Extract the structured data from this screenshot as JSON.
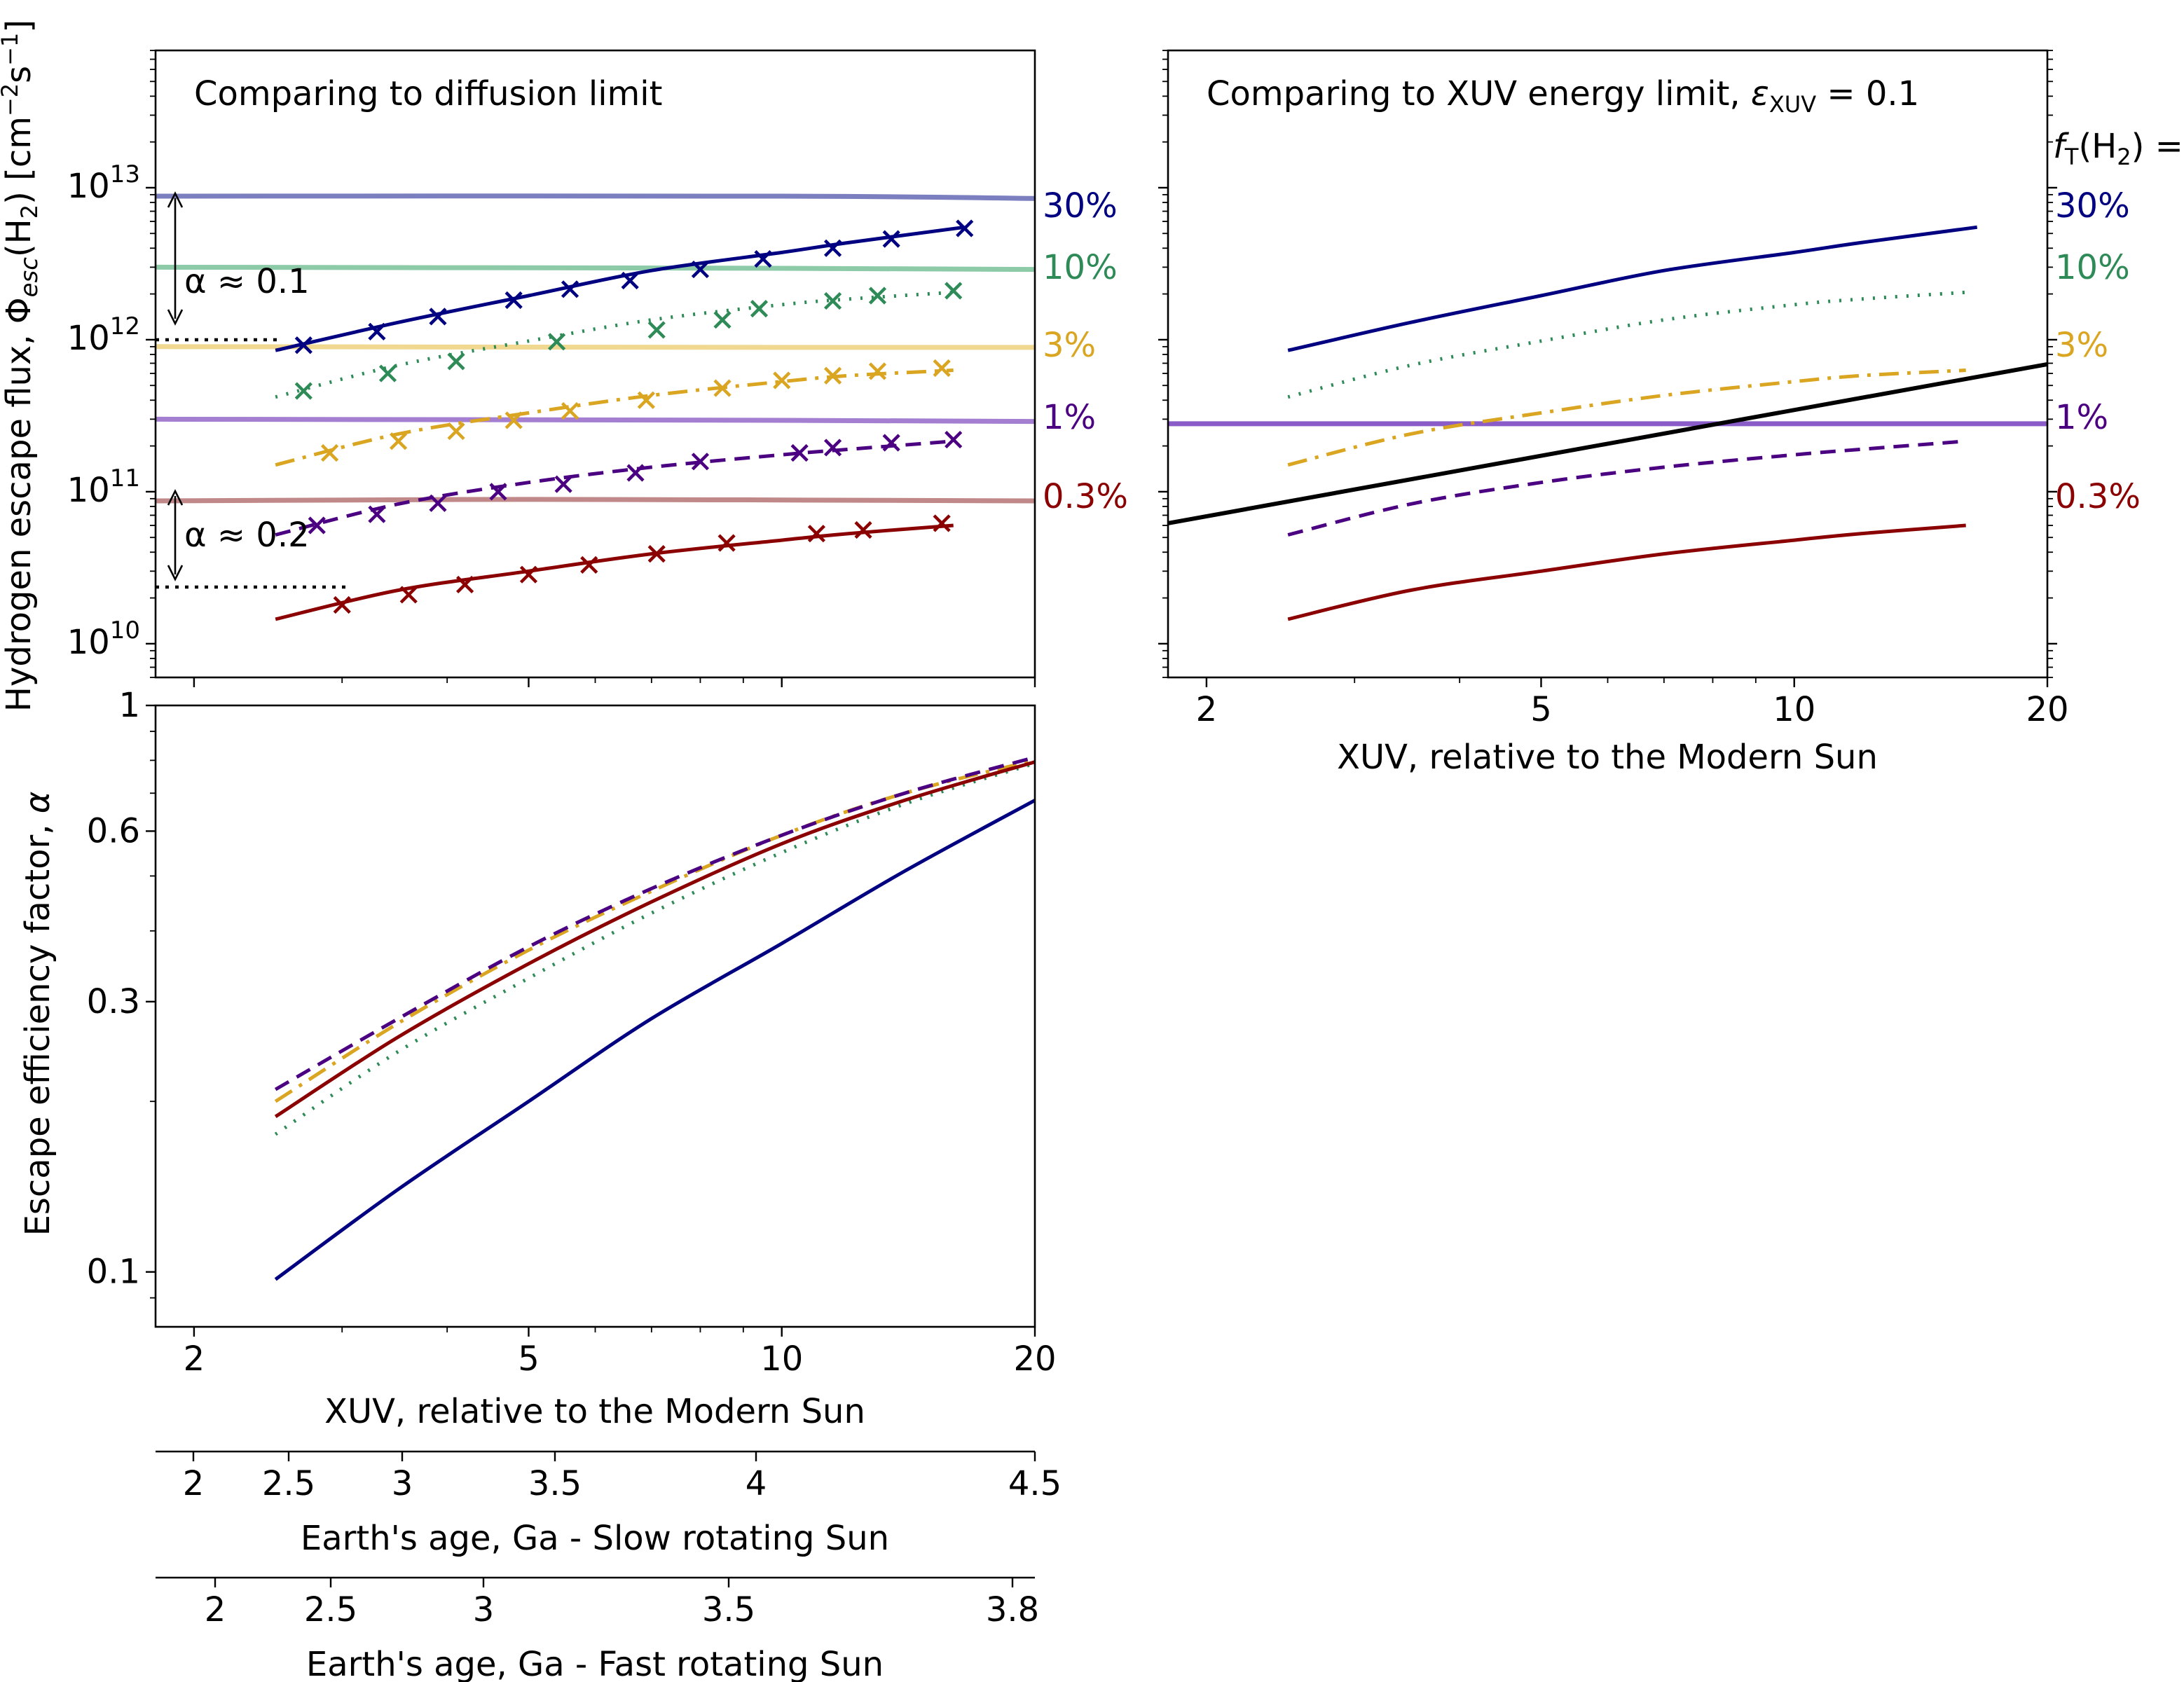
{
  "figure": {
    "ylabel_top": "Hydrogen escape flux, Φ_esc(H₂) [cm⁻²s⁻¹]",
    "ylabel_bottom": "Escape efficiency factor, α",
    "xlabel_xuv": "XUV, relative to the Modern Sun",
    "xlabel_slow": "Earth's age, Ga - Slow rotating Sun",
    "xlabel_fast": "Earth's age, Ga - Fast rotating Sun",
    "legend_header": "f_T(H₂) =",
    "xuv_ticks": [
      "2",
      "5",
      "10",
      "20"
    ],
    "flux_ticks": [
      {
        "base": "10",
        "exp": "10"
      },
      {
        "base": "10",
        "exp": "11"
      },
      {
        "base": "10",
        "exp": "12"
      },
      {
        "base": "10",
        "exp": "13"
      }
    ],
    "alpha_ticks": [
      "0.1",
      "0.3",
      "0.6",
      "1"
    ],
    "slow_age_ticks": [
      "2",
      "2.5",
      "3",
      "3.5",
      "4",
      "4.5"
    ],
    "fast_age_ticks": [
      "2",
      "2.5",
      "3",
      "3.5",
      "3.8"
    ],
    "annotations": {
      "alpha01": "α ≈ 0.1",
      "alpha02": "α ≈ 0.2"
    }
  },
  "series_styles": [
    {
      "label": "30%",
      "color": "#000080",
      "limit_color": "#7b7fc0",
      "dash": "none"
    },
    {
      "label": "10%",
      "color": "#2e8b57",
      "limit_color": "#8ccaa8",
      "dash": "dot"
    },
    {
      "label": "3%",
      "color": "#daa520",
      "limit_color": "#f0d890",
      "dash": "dashdot"
    },
    {
      "label": "1%",
      "color": "#4b0082",
      "limit_color": "#a47ed0",
      "dash": "dash"
    },
    {
      "label": "0.3%",
      "color": "#8b0000",
      "limit_color": "#c08888",
      "dash": "none"
    }
  ],
  "chart_data": [
    {
      "type": "line",
      "title": "Comparing to diffusion limit",
      "xlabel": "",
      "ylabel": "Hydrogen escape flux, Φ_esc(H₂) [cm⁻²s⁻¹]",
      "x_scale": "log",
      "y_scale": "log",
      "xlim": [
        1.8,
        20
      ],
      "ylim": [
        6000000000.0,
        80000000000000.0
      ],
      "legend": "right",
      "series": [
        {
          "name": "30%",
          "x": [
            2.5,
            3.5,
            5,
            7,
            10,
            12,
            16.5
          ],
          "y": [
            850000000000.0,
            1300000000000.0,
            1950000000000.0,
            2850000000000.0,
            3750000000000.0,
            4350000000000.0,
            5500000000000.0
          ]
        },
        {
          "name": "10%",
          "x": [
            2.5,
            3.5,
            5,
            7,
            10,
            12,
            16
          ],
          "y": [
            420000000000.0,
            680000000000.0,
            980000000000.0,
            1350000000000.0,
            1700000000000.0,
            1850000000000.0,
            2050000000000.0
          ]
        },
        {
          "name": "3%",
          "x": [
            2.5,
            3.5,
            5,
            7,
            10,
            12,
            16
          ],
          "y": [
            150000000000.0,
            240000000000.0,
            330000000000.0,
            430000000000.0,
            530000000000.0,
            580000000000.0,
            630000000000.0
          ]
        },
        {
          "name": "1%",
          "x": [
            2.5,
            3.5,
            5,
            7,
            10,
            12,
            16
          ],
          "y": [
            52000000000.0,
            83000000000.0,
            115000000000.0,
            145000000000.0,
            175000000000.0,
            190000000000.0,
            215000000000.0
          ]
        },
        {
          "name": "0.3%",
          "x": [
            2.5,
            3.5,
            5,
            7,
            10,
            12,
            16
          ],
          "y": [
            14500000000.0,
            22500000000.0,
            30000000000.0,
            39000000000.0,
            48000000000.0,
            53000000000.0,
            60000000000.0
          ]
        }
      ],
      "markers": [
        {
          "name": "30%",
          "x": [
            2.7,
            3.3,
            3.9,
            4.8,
            5.6,
            6.6,
            8,
            9.5,
            11.5,
            13.5,
            16.5
          ],
          "y": [
            920000000000.0,
            1130000000000.0,
            1420000000000.0,
            1820000000000.0,
            2150000000000.0,
            2450000000000.0,
            2900000000000.0,
            3400000000000.0,
            4000000000000.0,
            4600000000000.0,
            5400000000000.0
          ]
        },
        {
          "name": "10%",
          "x": [
            2.7,
            3.4,
            4.1,
            5.4,
            7.1,
            8.5,
            9.4,
            11.5,
            13,
            16
          ],
          "y": [
            460000000000.0,
            600000000000.0,
            720000000000.0,
            970000000000.0,
            1160000000000.0,
            1350000000000.0,
            1600000000000.0,
            1800000000000.0,
            1950000000000.0,
            2100000000000.0
          ]
        },
        {
          "name": "3%",
          "x": [
            2.9,
            3.5,
            4.1,
            4.8,
            5.6,
            6.9,
            8.5,
            10,
            11.5,
            13,
            15.5
          ],
          "y": [
            180000000000.0,
            215000000000.0,
            250000000000.0,
            295000000000.0,
            340000000000.0,
            400000000000.0,
            480000000000.0,
            540000000000.0,
            580000000000.0,
            620000000000.0,
            650000000000.0
          ]
        },
        {
          "name": "1%",
          "x": [
            2.8,
            3.3,
            3.9,
            4.6,
            5.5,
            6.7,
            8,
            10.5,
            11.5,
            13.5,
            16
          ],
          "y": [
            60000000000.0,
            71000000000.0,
            84000000000.0,
            100000000000.0,
            112000000000.0,
            133000000000.0,
            158000000000.0,
            180000000000.0,
            195000000000.0,
            210000000000.0,
            220000000000.0
          ]
        },
        {
          "name": "0.3%",
          "x": [
            3.0,
            3.6,
            4.2,
            5.0,
            5.9,
            7.1,
            8.6,
            11,
            12.5,
            15.5
          ],
          "y": [
            18000000000.0,
            21000000000.0,
            24500000000.0,
            28500000000.0,
            33000000000.0,
            39000000000.0,
            46000000000.0,
            53000000000.0,
            56000000000.0,
            62000000000.0
          ]
        }
      ],
      "limits": [
        {
          "name": "30%",
          "x": [
            1.8,
            10,
            20
          ],
          "y": [
            8800000000000.0,
            8800000000000.0,
            8500000000000.0
          ]
        },
        {
          "name": "10%",
          "x": [
            1.8,
            10,
            20
          ],
          "y": [
            3000000000000.0,
            2950000000000.0,
            2900000000000.0
          ]
        },
        {
          "name": "3%",
          "x": [
            1.8,
            10,
            20
          ],
          "y": [
            900000000000.0,
            890000000000.0,
            890000000000.0
          ]
        },
        {
          "name": "1%",
          "x": [
            1.8,
            10,
            20
          ],
          "y": [
            300000000000.0,
            295000000000.0,
            290000000000.0
          ]
        },
        {
          "name": "0.3%",
          "x": [
            1.8,
            5,
            20
          ],
          "y": [
            87000000000.0,
            89000000000.0,
            87000000000.0
          ]
        }
      ]
    },
    {
      "type": "line",
      "title": "Comparing to XUV energy limit, ε_XUV = 0.1",
      "xlabel": "XUV, relative to the Modern Sun",
      "ylabel": "",
      "x_scale": "log",
      "y_scale": "log",
      "xlim": [
        1.8,
        20
      ],
      "ylim": [
        6000000000.0,
        80000000000000.0
      ],
      "legend": "right",
      "series": [
        {
          "name": "30%",
          "x": [
            2.5,
            3.5,
            5,
            7,
            10,
            12,
            16.5
          ],
          "y": [
            850000000000.0,
            1300000000000.0,
            1950000000000.0,
            2850000000000.0,
            3750000000000.0,
            4350000000000.0,
            5500000000000.0
          ]
        },
        {
          "name": "10%",
          "x": [
            2.5,
            3.5,
            5,
            7,
            10,
            12,
            16
          ],
          "y": [
            420000000000.0,
            680000000000.0,
            980000000000.0,
            1350000000000.0,
            1700000000000.0,
            1850000000000.0,
            2050000000000.0
          ]
        },
        {
          "name": "3%",
          "x": [
            2.5,
            3.5,
            5,
            7,
            10,
            12,
            16
          ],
          "y": [
            150000000000.0,
            240000000000.0,
            330000000000.0,
            430000000000.0,
            530000000000.0,
            580000000000.0,
            630000000000.0
          ]
        },
        {
          "name": "1%",
          "x": [
            2.5,
            3.5,
            5,
            7,
            10,
            12,
            16
          ],
          "y": [
            52000000000.0,
            83000000000.0,
            115000000000.0,
            145000000000.0,
            175000000000.0,
            190000000000.0,
            215000000000.0
          ]
        },
        {
          "name": "0.3%",
          "x": [
            2.5,
            3.5,
            5,
            7,
            10,
            12,
            16
          ],
          "y": [
            14500000000.0,
            22500000000.0,
            30000000000.0,
            39000000000.0,
            48000000000.0,
            53000000000.0,
            60000000000.0
          ]
        }
      ],
      "energy_limit": {
        "x": [
          1.8,
          20
        ],
        "y": [
          62000000000.0,
          690000000000.0
        ]
      },
      "horizontal_line_1pct": {
        "y": 280000000000.0
      }
    },
    {
      "type": "line",
      "title": "",
      "xlabel": "XUV, relative to the Modern Sun",
      "ylabel": "Escape efficiency factor, α",
      "x_scale": "log",
      "y_scale": "log",
      "xlim": [
        1.8,
        20
      ],
      "ylim": [
        0.08,
        1.0
      ],
      "series": [
        {
          "name": "30%",
          "x": [
            2.5,
            3.5,
            5,
            7,
            10,
            14,
            20
          ],
          "y": [
            0.097,
            0.14,
            0.2,
            0.28,
            0.38,
            0.51,
            0.68
          ]
        },
        {
          "name": "10%",
          "x": [
            2.5,
            3.5,
            5,
            7,
            10,
            14,
            20
          ],
          "y": [
            0.175,
            0.245,
            0.33,
            0.43,
            0.55,
            0.67,
            0.79
          ]
        },
        {
          "name": "3%",
          "x": [
            2.5,
            3.5,
            5,
            7,
            10,
            14,
            20
          ],
          "y": [
            0.2,
            0.275,
            0.37,
            0.47,
            0.59,
            0.7,
            0.8
          ]
        },
        {
          "name": "1%",
          "x": [
            2.5,
            3.5,
            5,
            7,
            10,
            14,
            20
          ],
          "y": [
            0.21,
            0.28,
            0.375,
            0.475,
            0.59,
            0.7,
            0.81
          ]
        },
        {
          "name": "0.3%",
          "x": [
            2.5,
            3.5,
            5,
            7,
            10,
            14,
            20
          ],
          "y": [
            0.188,
            0.26,
            0.35,
            0.45,
            0.57,
            0.68,
            0.795
          ]
        }
      ]
    }
  ]
}
